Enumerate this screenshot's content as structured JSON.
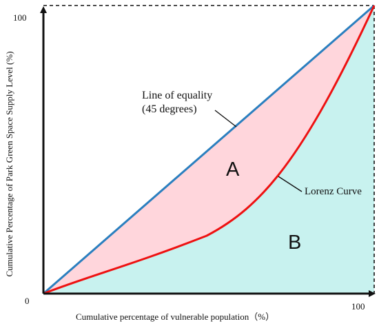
{
  "y_axis": {
    "label": "Cumulative Percentage of Park Green Space Supply Level (%)",
    "max_label": "100"
  },
  "x_axis": {
    "label": "Cumulative percentage of vulnerable population（%）",
    "max_label": "100"
  },
  "origin_label": "0",
  "equality_line": {
    "label_line1": "Line of equality",
    "label_line2": "(45 degrees)"
  },
  "lorenz_curve": {
    "label": "Lorenz Curve"
  },
  "regions": {
    "a_label": "A",
    "b_label": "B"
  },
  "colors": {
    "region_a": "#ffd6dc",
    "region_b": "#c8f2ef",
    "equality_line": "#2a7fbf",
    "lorenz_curve": "#ee1111",
    "axes": "#111111"
  }
}
